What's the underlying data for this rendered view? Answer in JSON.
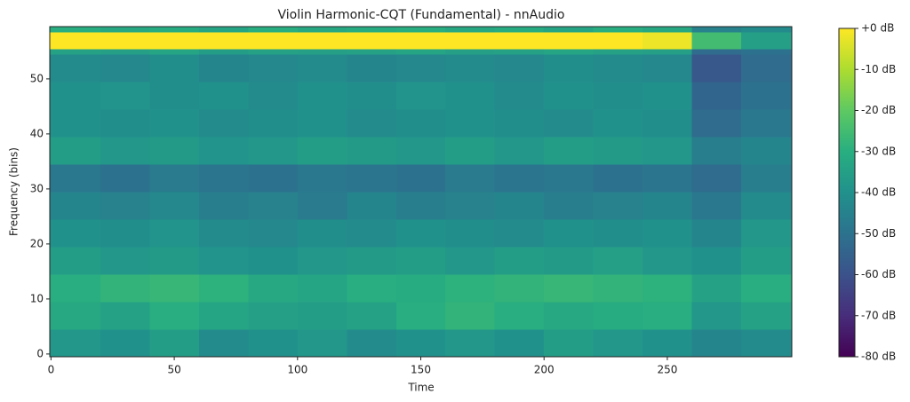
{
  "chart_data": {
    "type": "heatmap",
    "title": "Violin Harmonic-CQT (Fundamental) - nnAudio",
    "xlabel": "Time",
    "ylabel": "Frequency (bins)",
    "colormap": "viridis",
    "xlim": [
      -0.5,
      300.5
    ],
    "xticks": [
      0,
      50,
      100,
      150,
      200,
      250
    ],
    "ylim": [
      -0.5,
      59.5
    ],
    "yticks": [
      0,
      10,
      20,
      30,
      40,
      50
    ],
    "clim": [
      -80,
      0
    ],
    "cticks": [
      {
        "value": 0,
        "label": "+0 dB"
      },
      {
        "value": -10,
        "label": "-10 dB"
      },
      {
        "value": -20,
        "label": "-20 dB"
      },
      {
        "value": -30,
        "label": "-30 dB"
      },
      {
        "value": -40,
        "label": "-40 dB"
      },
      {
        "value": -50,
        "label": "-50 dB"
      },
      {
        "value": -60,
        "label": "-60 dB"
      },
      {
        "value": -70,
        "label": "-70 dB"
      },
      {
        "value": -80,
        "label": "-80 dB"
      }
    ],
    "xbins": [
      -0.5,
      20,
      40,
      60,
      80,
      100,
      120,
      140,
      160,
      180,
      200,
      220,
      240,
      260,
      280,
      300.5
    ],
    "ybins": [
      -0.5,
      4.5,
      9.5,
      14.5,
      19.5,
      24.5,
      29.5,
      34.5,
      39.5,
      44.5,
      49.5,
      54.5,
      55.5,
      58.5,
      59.5
    ],
    "values": [
      [
        -38,
        -40,
        -36,
        -42,
        -40,
        -38,
        -42,
        -40,
        -38,
        -40,
        -36,
        -38,
        -40,
        -44,
        -42
      ],
      [
        -32,
        -34,
        -30,
        -33,
        -35,
        -36,
        -34,
        -30,
        -28,
        -30,
        -32,
        -31,
        -30,
        -38,
        -34
      ],
      [
        -30,
        -28,
        -27,
        -29,
        -32,
        -33,
        -30,
        -31,
        -29,
        -28,
        -27,
        -28,
        -29,
        -34,
        -30
      ],
      [
        -36,
        -38,
        -37,
        -39,
        -40,
        -38,
        -37,
        -36,
        -38,
        -36,
        -37,
        -35,
        -38,
        -40,
        -36
      ],
      [
        -40,
        -41,
        -39,
        -42,
        -43,
        -41,
        -42,
        -40,
        -41,
        -42,
        -40,
        -41,
        -40,
        -44,
        -38
      ],
      [
        -44,
        -45,
        -43,
        -46,
        -45,
        -47,
        -44,
        -46,
        -45,
        -44,
        -46,
        -45,
        -44,
        -48,
        -42
      ],
      [
        -48,
        -50,
        -47,
        -49,
        -50,
        -48,
        -49,
        -50,
        -47,
        -49,
        -48,
        -50,
        -49,
        -52,
        -46
      ],
      [
        -36,
        -38,
        -37,
        -39,
        -38,
        -36,
        -37,
        -38,
        -36,
        -38,
        -36,
        -37,
        -38,
        -46,
        -44
      ],
      [
        -40,
        -41,
        -40,
        -42,
        -41,
        -40,
        -42,
        -41,
        -40,
        -41,
        -42,
        -40,
        -41,
        -52,
        -48
      ],
      [
        -40,
        -39,
        -41,
        -40,
        -42,
        -40,
        -41,
        -39,
        -40,
        -42,
        -40,
        -41,
        -40,
        -54,
        -50
      ],
      [
        -42,
        -43,
        -41,
        -44,
        -43,
        -42,
        -44,
        -43,
        -42,
        -43,
        -41,
        -42,
        -43,
        -58,
        -52
      ],
      [
        -34,
        -35,
        -33,
        -36,
        -34,
        -35,
        -34,
        -33,
        -35,
        -34,
        -33,
        -34,
        -35,
        -52,
        -50
      ],
      [
        0,
        0,
        0,
        0,
        0,
        0,
        0,
        0,
        0,
        0,
        0,
        0,
        -2,
        -25,
        -35
      ],
      [
        -30,
        -32,
        -31,
        -33,
        -30,
        -32,
        -31,
        -30,
        -32,
        -31,
        -33,
        -30,
        -32,
        -45,
        -42
      ]
    ]
  }
}
